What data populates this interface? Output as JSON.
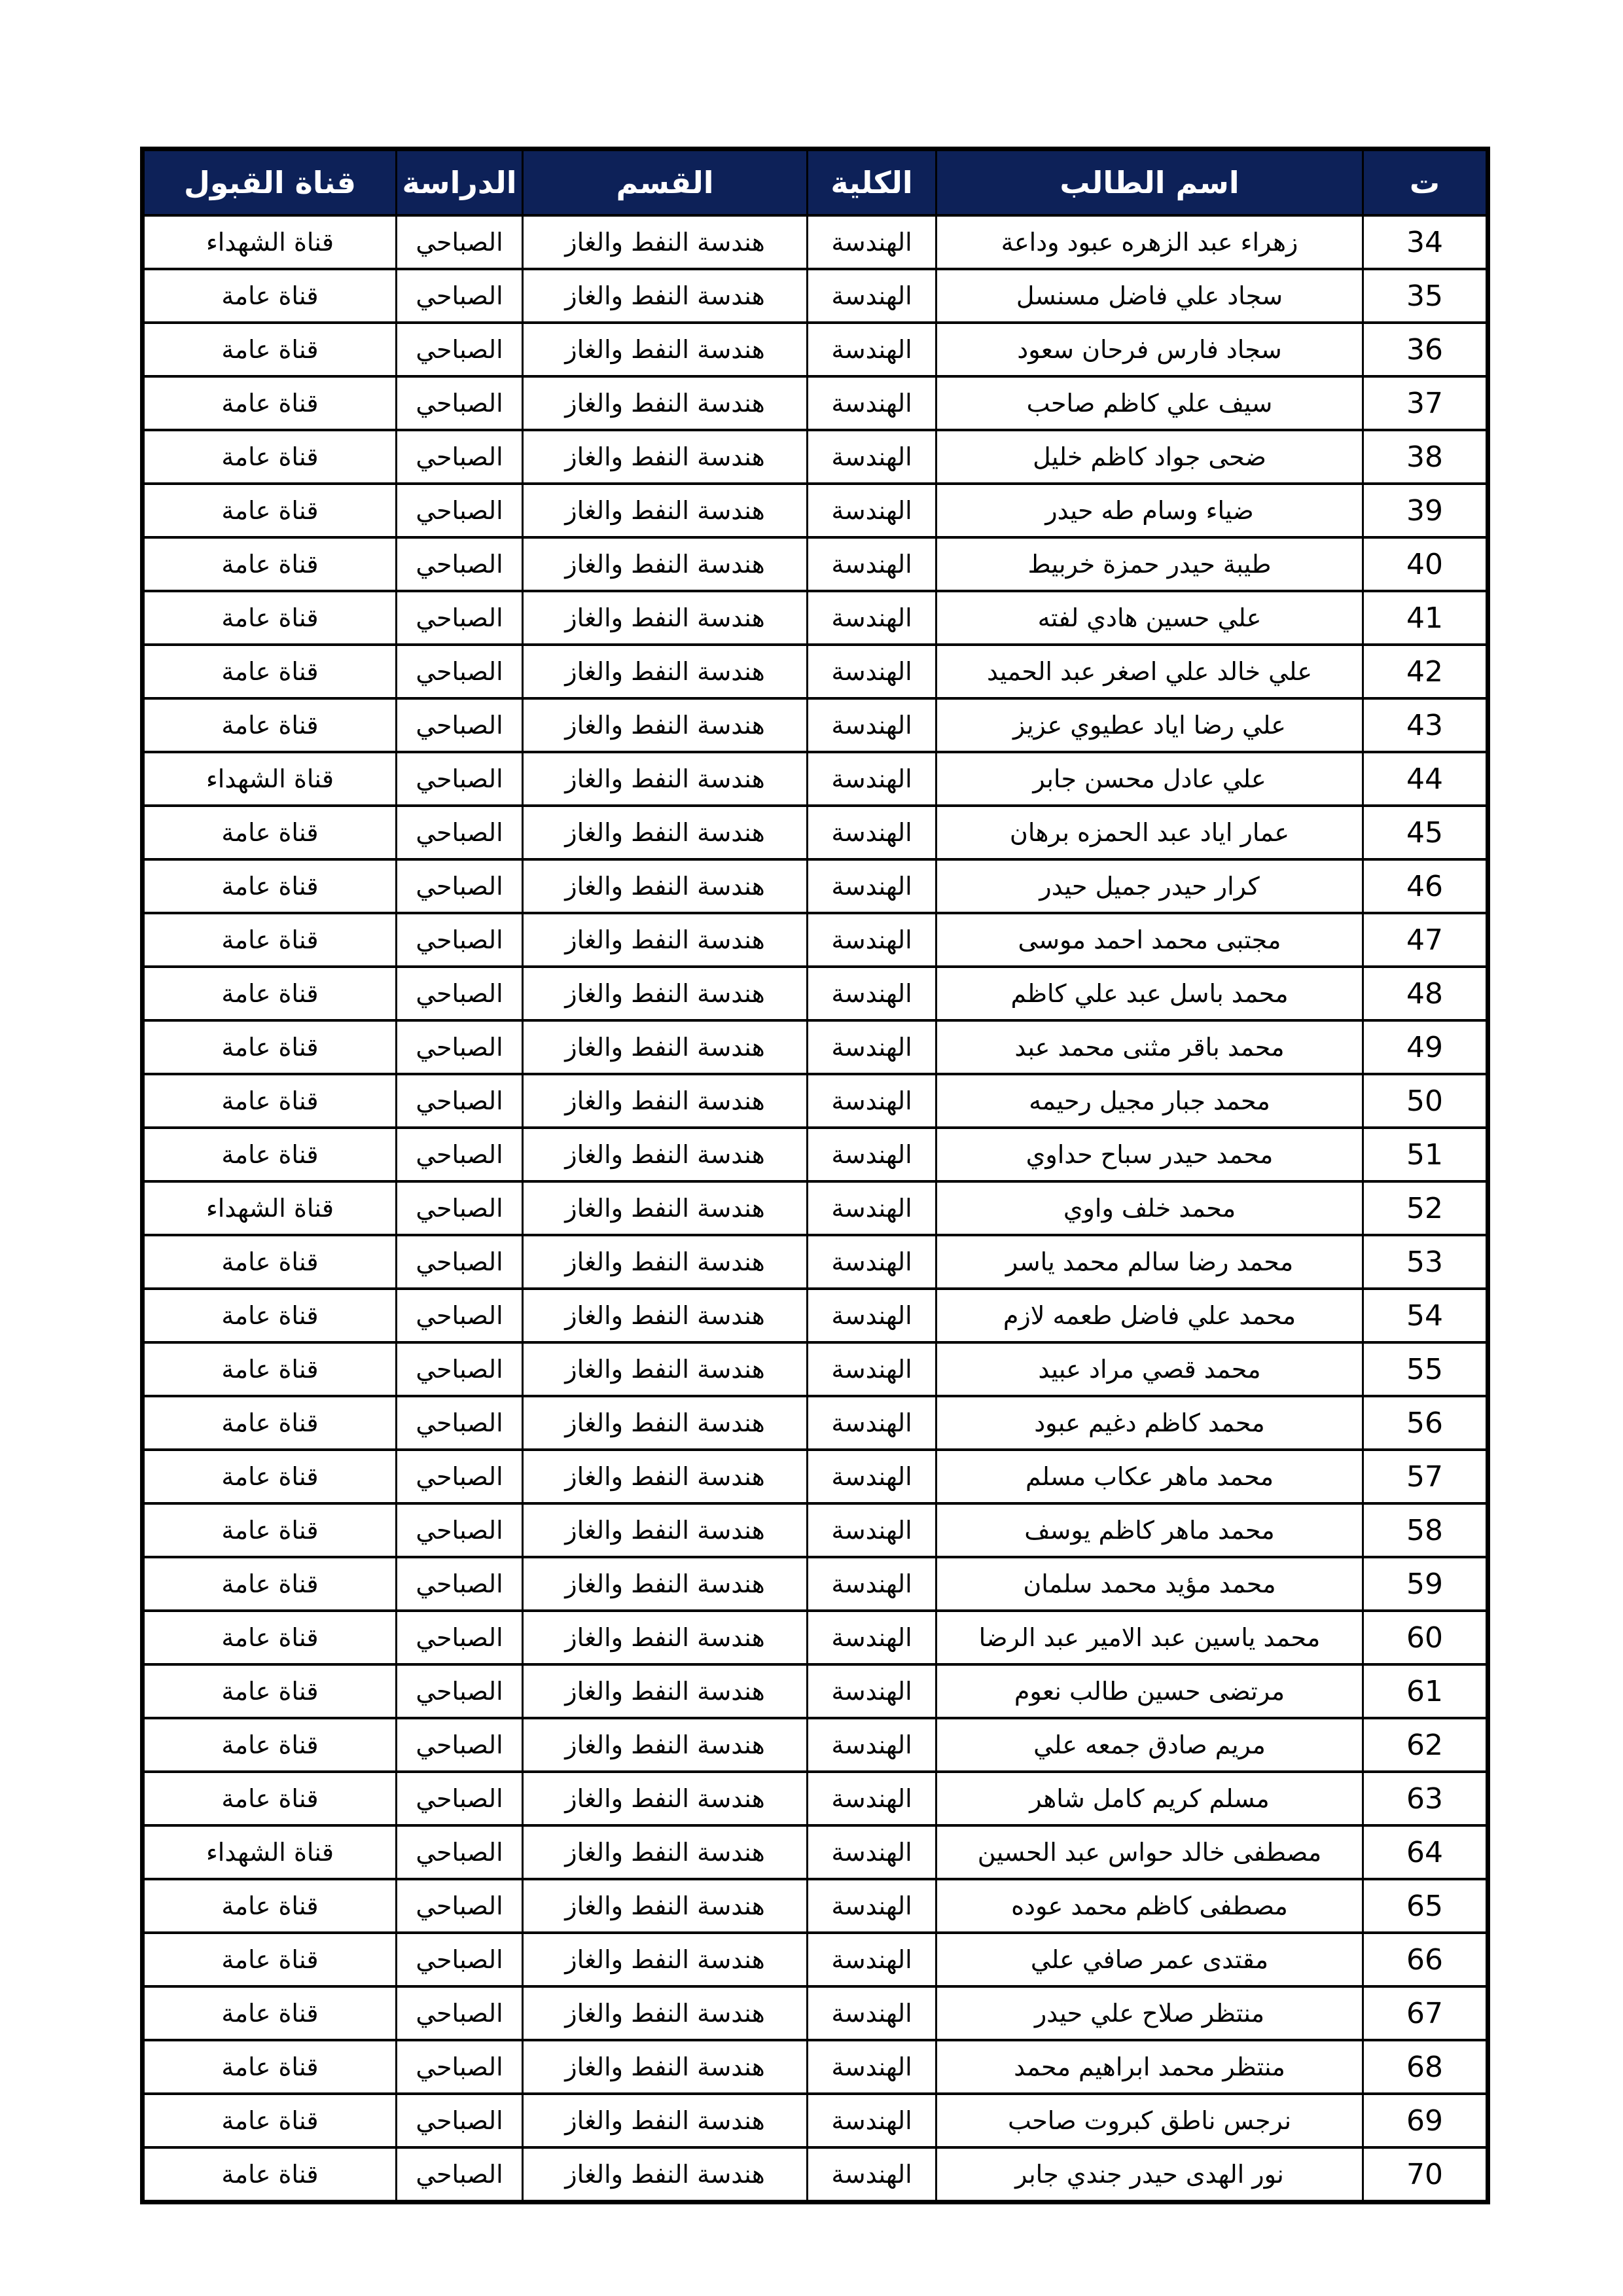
{
  "colors": {
    "header_bg": "#0d2158",
    "header_text": "#ffffff",
    "grid_line": "#000000",
    "row_bg": "#ffffff"
  },
  "table": {
    "headers": {
      "no": "ت",
      "name": "اسم الطالب",
      "college": "الكلية",
      "department": "القسم",
      "study": "الدراسة",
      "channel": "قناة القبول"
    },
    "common": {
      "college": "الهندسة",
      "department": "هندسة النفط والغاز",
      "study": "الصباحي"
    },
    "channel_values": {
      "general": "قناة عامة",
      "martyrs": "قناة الشهداء"
    },
    "rows": [
      {
        "no": "34",
        "name": "زهراء عبد الزهره عبود وداعة",
        "channel": "قناة الشهداء"
      },
      {
        "no": "35",
        "name": "سجاد علي فاضل مسنسل",
        "channel": "قناة عامة"
      },
      {
        "no": "36",
        "name": "سجاد فارس فرحان سعود",
        "channel": "قناة عامة"
      },
      {
        "no": "37",
        "name": "سيف علي كاظم صاحب",
        "channel": "قناة عامة"
      },
      {
        "no": "38",
        "name": "ضحى جواد كاظم خليل",
        "channel": "قناة عامة"
      },
      {
        "no": "39",
        "name": "ضياء وسام طه حيدر",
        "channel": "قناة عامة"
      },
      {
        "no": "40",
        "name": "طيبة حيدر حمزة خربيط",
        "channel": "قناة عامة"
      },
      {
        "no": "41",
        "name": "علي حسين هادي لفته",
        "channel": "قناة عامة"
      },
      {
        "no": "42",
        "name": "علي خالد علي اصغر عبد الحميد",
        "channel": "قناة عامة"
      },
      {
        "no": "43",
        "name": "علي رضا اياد عطيوي عزيز",
        "channel": "قناة عامة"
      },
      {
        "no": "44",
        "name": "علي عادل محسن جابر",
        "channel": "قناة الشهداء"
      },
      {
        "no": "45",
        "name": "عمار اياد عبد الحمزه برهان",
        "channel": "قناة عامة"
      },
      {
        "no": "46",
        "name": "كرار حيدر جميل حيدر",
        "channel": "قناة عامة"
      },
      {
        "no": "47",
        "name": "مجتبى محمد احمد موسى",
        "channel": "قناة عامة"
      },
      {
        "no": "48",
        "name": "محمد باسل عبد علي كاظم",
        "channel": "قناة عامة"
      },
      {
        "no": "49",
        "name": "محمد باقر مثنى محمد عبد",
        "channel": "قناة عامة"
      },
      {
        "no": "50",
        "name": "محمد جبار مجيل رحيمه",
        "channel": "قناة عامة"
      },
      {
        "no": "51",
        "name": "محمد حيدر سباح حداوي",
        "channel": "قناة عامة"
      },
      {
        "no": "52",
        "name": "محمد خلف واوي",
        "channel": "قناة الشهداء"
      },
      {
        "no": "53",
        "name": "محمد رضا سالم محمد ياسر",
        "channel": "قناة عامة"
      },
      {
        "no": "54",
        "name": "محمد علي فاضل طعمه لازم",
        "channel": "قناة عامة"
      },
      {
        "no": "55",
        "name": "محمد قصي مراد عبيد",
        "channel": "قناة عامة"
      },
      {
        "no": "56",
        "name": "محمد كاظم دغيم عبود",
        "channel": "قناة عامة"
      },
      {
        "no": "57",
        "name": "محمد ماهر عكاب مسلم",
        "channel": "قناة عامة"
      },
      {
        "no": "58",
        "name": "محمد ماهر كاظم يوسف",
        "channel": "قناة عامة"
      },
      {
        "no": "59",
        "name": "محمد مؤيد محمد سلمان",
        "channel": "قناة عامة"
      },
      {
        "no": "60",
        "name": "محمد ياسين عبد الامير عبد الرضا",
        "channel": "قناة عامة"
      },
      {
        "no": "61",
        "name": "مرتضى حسين طالب نعوم",
        "channel": "قناة عامة"
      },
      {
        "no": "62",
        "name": "مريم صادق جمعه علي",
        "channel": "قناة عامة"
      },
      {
        "no": "63",
        "name": "مسلم كريم كامل شاهر",
        "channel": "قناة عامة"
      },
      {
        "no": "64",
        "name": "مصطفى خالد حواس عبد الحسين",
        "channel": "قناة الشهداء"
      },
      {
        "no": "65",
        "name": "مصطفى كاظم محمد عوده",
        "channel": "قناة عامة"
      },
      {
        "no": "66",
        "name": "مقتدى عمر صافي علي",
        "channel": "قناة عامة"
      },
      {
        "no": "67",
        "name": "منتظر صلاح علي حيدر",
        "channel": "قناة عامة"
      },
      {
        "no": "68",
        "name": "منتظر محمد ابراهيم محمد",
        "channel": "قناة عامة"
      },
      {
        "no": "69",
        "name": "نرجس ناطق كبروت صاحب",
        "channel": "قناة عامة"
      },
      {
        "no": "70",
        "name": "نور الهدى حيدر جندي جابر",
        "channel": "قناة عامة"
      }
    ]
  }
}
